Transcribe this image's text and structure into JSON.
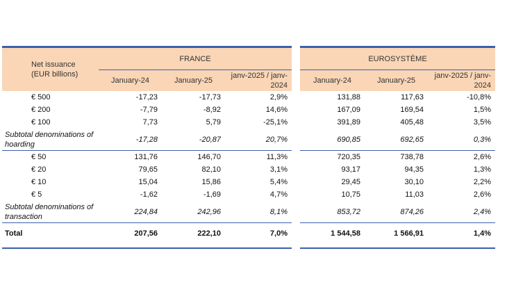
{
  "row_header": "Net issuance (EUR billions)",
  "columns": [
    "January-24",
    "January-25",
    "janv-2025 / janv-2024"
  ],
  "france": {
    "title": "FRANCE",
    "rows": [
      [
        "-17,23",
        "-17,73",
        "2,9%"
      ],
      [
        "-7,79",
        "-8,92",
        "14,6%"
      ],
      [
        "7,73",
        "5,79",
        "-25,1%"
      ],
      [
        "-17,28",
        "-20,87",
        "20,7%"
      ],
      [
        "131,76",
        "146,70",
        "11,3%"
      ],
      [
        "79,65",
        "82,10",
        "3,1%"
      ],
      [
        "15,04",
        "15,86",
        "5,4%"
      ],
      [
        "-1,62",
        "-1,69",
        "4,7%"
      ],
      [
        "224,84",
        "242,96",
        "8,1%"
      ],
      [
        "207,56",
        "222,10",
        "7,0%"
      ]
    ]
  },
  "eurosystem": {
    "title": "EUROSYSTÈME",
    "rows": [
      [
        "131,88",
        "117,63",
        "-10,8%"
      ],
      [
        "167,09",
        "169,54",
        "1,5%"
      ],
      [
        "391,89",
        "405,48",
        "3,5%"
      ],
      [
        "690,85",
        "692,65",
        "0,3%"
      ],
      [
        "720,35",
        "738,78",
        "2,6%"
      ],
      [
        "93,17",
        "94,35",
        "1,3%"
      ],
      [
        "29,45",
        "30,10",
        "2,2%"
      ],
      [
        "10,75",
        "11,03",
        "2,6%"
      ],
      [
        "853,72",
        "874,26",
        "2,4%"
      ],
      [
        "1 544,58",
        "1 566,91",
        "1,4%"
      ]
    ]
  },
  "row_labels": [
    "€ 500",
    "€ 200",
    "€ 100",
    "Subtotal denominations of hoarding",
    "€ 50",
    "€ 20",
    "€ 10",
    "€ 5",
    "Subtotal denominations of transaction",
    "Total"
  ],
  "colors": {
    "header_bg": "#fad6b6",
    "rule": "#3c5faa"
  }
}
